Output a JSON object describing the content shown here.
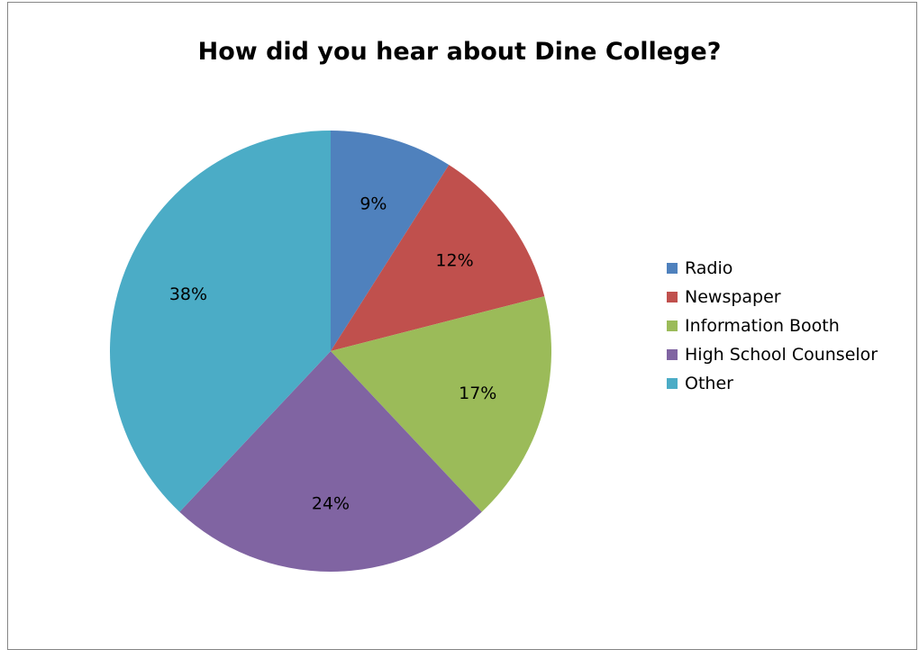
{
  "chart_data": {
    "type": "pie",
    "title": "How did you hear about Dine College?",
    "categories": [
      "Radio",
      "Newspaper",
      "Information Booth",
      "High School Counselor",
      "Other"
    ],
    "values": [
      9,
      12,
      17,
      24,
      38
    ],
    "labels": [
      "9%",
      "12%",
      "17%",
      "24%",
      "38%"
    ],
    "colors": [
      "#4F81BD",
      "#C0504D",
      "#9BBB59",
      "#8064A2",
      "#4BACC6"
    ],
    "legend_position": "right",
    "start_angle": "12 o'clock, clockwise"
  },
  "legend": {
    "items": [
      {
        "label": "Radio",
        "color": "#4F81BD"
      },
      {
        "label": "Newspaper",
        "color": "#C0504D"
      },
      {
        "label": "Information Booth",
        "color": "#9BBB59"
      },
      {
        "label": "High School Counselor",
        "color": "#8064A2"
      },
      {
        "label": "Other",
        "color": "#4BACC6"
      }
    ]
  }
}
